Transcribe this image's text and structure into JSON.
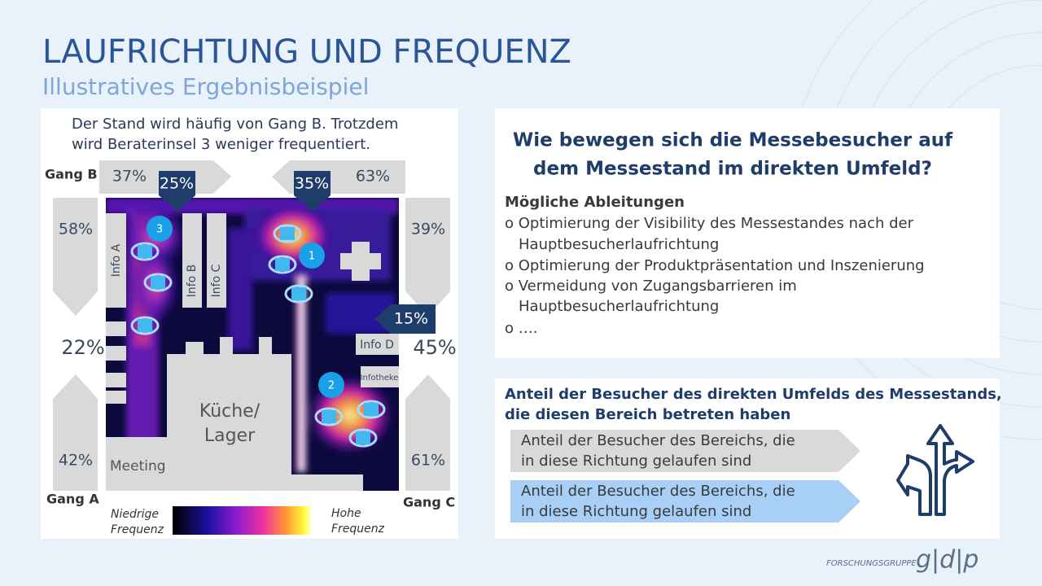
{
  "header": {
    "title": "LAUFRICHTUNG UND FREQUENZ",
    "subtitle": "Illustratives Ergebnisbeispiel"
  },
  "heatmap_panel": {
    "caption": [
      "Der Stand wird häufig von Gang B. Trotzdem",
      "wird Beraterinsel 3 weniger frequentiert."
    ],
    "gangs": {
      "b": "Gang B",
      "a": "Gang A",
      "c": "Gang C"
    },
    "flows": [
      "37%",
      "25%",
      "35%",
      "63%",
      "58%",
      "22%",
      "42%",
      "39%",
      "45%",
      "61%",
      "15%"
    ],
    "areas": {
      "info_a": "Info A",
      "info_b": "Info B",
      "info_c": "Info C",
      "info_d": "Info D",
      "infotheke": "Infotheke",
      "kitchen": [
        "Küche/",
        "Lager"
      ],
      "meeting": "Meeting"
    },
    "markers": [
      "1",
      "2",
      "3"
    ],
    "legend": {
      "low": [
        "Niedrige",
        "Frequenz"
      ],
      "high": [
        "Hohe",
        "Frequenz"
      ]
    }
  },
  "question_panel": {
    "question": [
      "Wie bewegen sich die Messebesucher auf",
      "dem Messestand im direkten Umfeld?"
    ],
    "heading": "Mögliche Ableitungen",
    "items": [
      [
        "o Optimierung der Visibility des Messestandes nach der",
        "Hauptbesucherlaufrichtung"
      ],
      [
        "o  Optimierung der Produktpräsentation und Inszenierung"
      ],
      [
        "o Vermeidung von Zugangsbarrieren im",
        "Hauptbesucherlaufrichtung"
      ],
      [
        "o …."
      ]
    ]
  },
  "legend_panel": {
    "heading": [
      "Anteil der Besucher des direkten Umfelds des Messestands,",
      "die diesen Bereich betreten haben"
    ],
    "gray_arrow": [
      "Anteil der Besucher des Bereichs, die",
      "in diese Richtung gelaufen sind"
    ],
    "blue_arrow": [
      "Anteil der Besucher des Bereichs, die",
      "in diese Richtung gelaufen sind"
    ]
  },
  "footer": {
    "group": "FORSCHUNGSGRUPPE",
    "logo": "g|d|p"
  }
}
